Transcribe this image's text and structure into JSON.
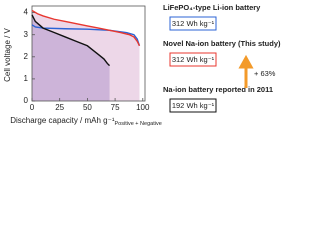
{
  "chart_data": {
    "type": "line",
    "x_label": "Discharge capacity / mAh g⁻¹",
    "x_label_subscript": "Positive + Negative",
    "y_label": "Cell voltage / V",
    "xlim": [
      0,
      102
    ],
    "xticks": [
      0,
      25,
      50,
      75,
      100
    ],
    "ylim": [
      0,
      4.3
    ],
    "yticks": [
      0,
      1,
      2,
      3,
      4
    ],
    "series": [
      {
        "name": "LiFePO₄-type Li-ion battery",
        "color": "#2b63d6",
        "fill_color": null,
        "x": [
          0,
          3,
          10,
          30,
          50,
          70,
          85,
          92,
          95,
          97
        ],
        "values": [
          3.45,
          3.35,
          3.3,
          3.27,
          3.25,
          3.2,
          3.1,
          3.0,
          2.8,
          2.5
        ]
      },
      {
        "name": "Novel Na-ion battery (This study)",
        "color": "#e8372f",
        "fill_color": "#ead0e4",
        "x": [
          0,
          5,
          10,
          20,
          30,
          40,
          50,
          60,
          70,
          80,
          88,
          92,
          95,
          97
        ],
        "values": [
          4.1,
          3.95,
          3.85,
          3.7,
          3.6,
          3.5,
          3.4,
          3.3,
          3.2,
          3.1,
          3.0,
          2.9,
          2.7,
          2.5
        ]
      },
      {
        "name": "Na-ion battery reported in 2011",
        "color": "#111111",
        "fill_color": "#c7aed6",
        "x": [
          0,
          3,
          10,
          20,
          30,
          40,
          50,
          55,
          60,
          65,
          68,
          70
        ],
        "values": [
          3.9,
          3.6,
          3.3,
          3.1,
          2.9,
          2.7,
          2.5,
          2.3,
          2.1,
          1.9,
          1.7,
          1.6
        ]
      }
    ],
    "energy_labels": [
      "312 Wh kg⁻¹",
      "312 Wh kg⁻¹",
      "192 Wh kg⁻¹"
    ],
    "improvement": {
      "text": "+ 63%",
      "color": "#f39a2a"
    }
  }
}
